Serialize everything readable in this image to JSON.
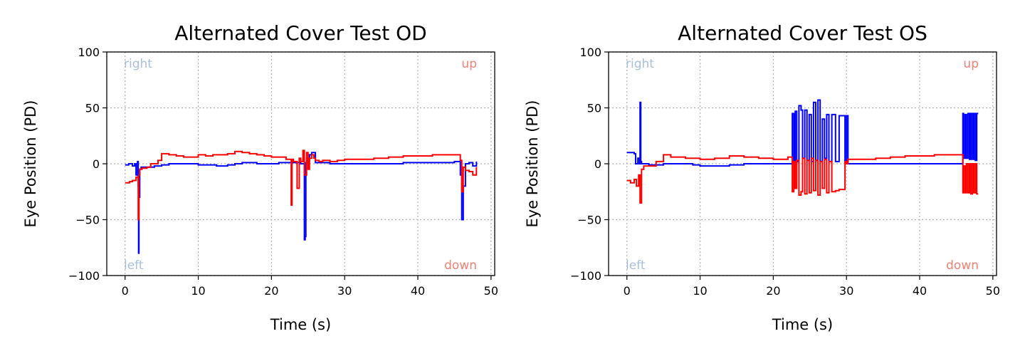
{
  "chart_data": [
    {
      "type": "line",
      "title": "Alternated Cover Test OD",
      "xlabel": "Time (s)",
      "ylabel": "Eye Position (PD)",
      "xlim": [
        -2.5,
        50.5
      ],
      "ylim": [
        -100,
        100
      ],
      "xticks": [
        0,
        10,
        20,
        30,
        40,
        50
      ],
      "yticks": [
        -100,
        -50,
        0,
        50,
        100
      ],
      "xtick_labels": [
        "0",
        "10",
        "20",
        "30",
        "40",
        "50"
      ],
      "ytick_labels": [
        "−100",
        "−50",
        "0",
        "50",
        "100"
      ],
      "grid": true,
      "corner_labels": {
        "top_left": "right",
        "top_right": "up",
        "bottom_left": "left",
        "bottom_right": "down"
      },
      "corner_colors": {
        "horizontal": "#a9bedc",
        "vertical": "#f47f73"
      },
      "series": [
        {
          "color": "#0000ff",
          "x": [
            0,
            0.5,
            1.0,
            1.3,
            1.5,
            1.7,
            1.8,
            1.85,
            1.9,
            2.0,
            2.2,
            3,
            4,
            5,
            6,
            8,
            10,
            11,
            12,
            12.5,
            14,
            15,
            16,
            17,
            18,
            20,
            21,
            22,
            23,
            24,
            24.5,
            24.6,
            24.7,
            24.8,
            25.0,
            25.2,
            25.5,
            26,
            27,
            28,
            30,
            32,
            34,
            36,
            38,
            40,
            42,
            44,
            45,
            45.8,
            46.0,
            46.2,
            46.5,
            47,
            47.5,
            48
          ],
          "y": [
            -1,
            0,
            -2,
            0,
            -10,
            2,
            -20,
            -80,
            -30,
            -5,
            -3,
            -3,
            -2,
            -1,
            0,
            0,
            -1,
            -1,
            -1,
            -2,
            -1,
            0,
            1,
            1,
            0,
            0,
            1,
            1,
            1,
            0,
            -68,
            -65,
            1,
            5,
            3,
            8,
            10,
            1,
            1,
            0,
            0,
            0,
            0,
            0,
            1,
            1,
            1,
            1,
            2,
            -10,
            -50,
            -20,
            0,
            1,
            -2,
            2
          ]
        },
        {
          "color": "#ff0000",
          "x": [
            0,
            0.6,
            1.0,
            1.5,
            1.8,
            1.9,
            2.0,
            2.3,
            3,
            3.5,
            4.5,
            5,
            6,
            7,
            8,
            9,
            10,
            11,
            12,
            13,
            14,
            15,
            16,
            17,
            18,
            19,
            20,
            21,
            22,
            22.5,
            22.7,
            22.8,
            23.0,
            23.5,
            23.8,
            24,
            24.3,
            24.5,
            24.8,
            25,
            25.2,
            25.5,
            25.8,
            26,
            26.5,
            27,
            28,
            29,
            30,
            32,
            34,
            36,
            38,
            40,
            42,
            44,
            45,
            45.8,
            46.0,
            46.2,
            46.5,
            47,
            47.5,
            48
          ],
          "y": [
            -17,
            -16,
            -15,
            -12,
            -50,
            -10,
            -5,
            -4,
            -3,
            0,
            3,
            9,
            8,
            7,
            6,
            6,
            8,
            7,
            8,
            8,
            9,
            11,
            10,
            9,
            8,
            7,
            6,
            6,
            4,
            4,
            -37,
            4,
            2,
            -22,
            5,
            2,
            12,
            -10,
            10,
            -5,
            5,
            8,
            5,
            3,
            2,
            3,
            2,
            3,
            4,
            4,
            5,
            6,
            7,
            7,
            8,
            8,
            8,
            3,
            -25,
            -3,
            -6,
            -7,
            -10,
            -3
          ]
        }
      ]
    },
    {
      "type": "line",
      "title": "Alternated Cover Test OS",
      "xlabel": "Time (s)",
      "ylabel": "Eye Position (PD)",
      "xlim": [
        -2.5,
        50.5
      ],
      "ylim": [
        -100,
        100
      ],
      "xticks": [
        0,
        10,
        20,
        30,
        40,
        50
      ],
      "yticks": [
        -100,
        -50,
        0,
        50,
        100
      ],
      "xtick_labels": [
        "0",
        "10",
        "20",
        "30",
        "40",
        "50"
      ],
      "ytick_labels": [
        "−100",
        "−50",
        "0",
        "50",
        "100"
      ],
      "grid": true,
      "corner_labels": {
        "top_left": "right",
        "top_right": "up",
        "bottom_left": "left",
        "bottom_right": "down"
      },
      "corner_colors": {
        "horizontal": "#a9bedc",
        "vertical": "#f47f73"
      },
      "series": [
        {
          "color": "#0000ff",
          "x": [
            0,
            0.5,
            1.0,
            1.2,
            1.5,
            1.7,
            1.8,
            1.9,
            2.0,
            2.5,
            3,
            5,
            7,
            9,
            10,
            12,
            14,
            16,
            18,
            20,
            22,
            22.5,
            22.6,
            22.8,
            23.0,
            23.2,
            23.5,
            23.8,
            24.0,
            24.3,
            24.6,
            24.9,
            25.2,
            25.5,
            25.8,
            26.1,
            26.4,
            26.7,
            27.0,
            27.3,
            27.6,
            28.0,
            28.5,
            29,
            29.5,
            29.8,
            30.0,
            30.2,
            32,
            34,
            36,
            38,
            40,
            42,
            44,
            45,
            45.9,
            46.0,
            46.2,
            46.4,
            46.6,
            46.8,
            47.0,
            47.2,
            47.4,
            47.6,
            47.8,
            48.0
          ],
          "y": [
            10,
            10,
            9,
            0,
            5,
            0,
            55,
            2,
            0,
            0,
            -1,
            0,
            0,
            -1,
            -2,
            -2,
            -1,
            0,
            0,
            0,
            0,
            0,
            45,
            0,
            47,
            2,
            52,
            48,
            5,
            48,
            3,
            44,
            2,
            55,
            3,
            57,
            2,
            40,
            5,
            44,
            2,
            44,
            2,
            43,
            43,
            1,
            43,
            0,
            0,
            0,
            0,
            0,
            0,
            0,
            0,
            0,
            45,
            5,
            44,
            5,
            45,
            4,
            45,
            4,
            45,
            3,
            45,
            45
          ]
        },
        {
          "color": "#ff0000",
          "x": [
            0,
            0.5,
            1.0,
            1.3,
            1.6,
            1.8,
            2.0,
            2.3,
            3,
            4,
            5,
            6,
            8,
            10,
            12,
            14,
            16,
            18,
            20,
            22,
            22.5,
            22.6,
            22.8,
            23.0,
            23.2,
            23.5,
            23.8,
            24.0,
            24.3,
            24.6,
            24.9,
            25.2,
            25.5,
            25.8,
            26.1,
            26.4,
            26.7,
            27.0,
            27.3,
            27.6,
            28.0,
            28.5,
            29,
            29.5,
            29.8,
            30.0,
            30.2,
            32,
            34,
            36,
            38,
            40,
            42,
            44,
            45,
            45.9,
            46.0,
            46.2,
            46.4,
            46.6,
            46.8,
            47.0,
            47.2,
            47.4,
            47.6,
            47.8,
            48.0
          ],
          "y": [
            -15,
            -17,
            -14,
            -20,
            -10,
            -35,
            -5,
            -2,
            -2,
            2,
            8,
            6,
            5,
            4,
            5,
            7,
            6,
            5,
            4,
            6,
            6,
            -25,
            2,
            -22,
            3,
            -28,
            -25,
            5,
            -27,
            3,
            -26,
            5,
            -24,
            3,
            -28,
            2,
            -22,
            4,
            -26,
            2,
            -25,
            -24,
            -23,
            -23,
            2,
            0,
            4,
            4,
            5,
            6,
            7,
            7,
            8,
            8,
            8,
            -26,
            -2,
            -26,
            0,
            -26,
            0,
            -27,
            0,
            -26,
            0,
            -27,
            -27
          ]
        }
      ]
    }
  ]
}
